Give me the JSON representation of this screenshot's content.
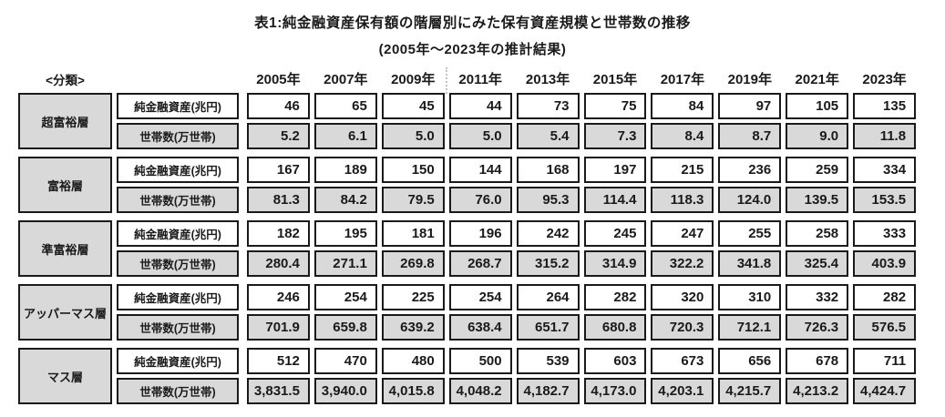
{
  "chart_data": {
    "type": "table",
    "title": "表1:純金融資産保有額の階層別にみた保有資産規模と世帯数の推移",
    "subtitle": "(2005年〜2023年の推計結果)",
    "classification_header": "<分類>",
    "columns": [
      "2005年",
      "2007年",
      "2009年",
      "2011年",
      "2013年",
      "2015年",
      "2017年",
      "2019年",
      "2021年",
      "2023年"
    ],
    "row_labels": {
      "assets": "純金融資産(兆円)",
      "households": "世帯数(万世帯)"
    },
    "groups": [
      {
        "category": "超富裕層",
        "assets": [
          "46",
          "65",
          "45",
          "44",
          "73",
          "75",
          "84",
          "97",
          "105",
          "135"
        ],
        "households": [
          "5.2",
          "6.1",
          "5.0",
          "5.0",
          "5.4",
          "7.3",
          "8.4",
          "8.7",
          "9.0",
          "11.8"
        ]
      },
      {
        "category": "富裕層",
        "assets": [
          "167",
          "189",
          "150",
          "144",
          "168",
          "197",
          "215",
          "236",
          "259",
          "334"
        ],
        "households": [
          "81.3",
          "84.2",
          "79.5",
          "76.0",
          "95.3",
          "114.4",
          "118.3",
          "124.0",
          "139.5",
          "153.5"
        ]
      },
      {
        "category": "準富裕層",
        "assets": [
          "182",
          "195",
          "181",
          "196",
          "242",
          "245",
          "247",
          "255",
          "258",
          "333"
        ],
        "households": [
          "280.4",
          "271.1",
          "269.8",
          "268.7",
          "315.2",
          "314.9",
          "322.2",
          "341.8",
          "325.4",
          "403.9"
        ]
      },
      {
        "category": "アッパーマス層",
        "assets": [
          "246",
          "254",
          "225",
          "254",
          "264",
          "282",
          "320",
          "310",
          "332",
          "282"
        ],
        "households": [
          "701.9",
          "659.8",
          "639.2",
          "638.4",
          "651.7",
          "680.8",
          "720.3",
          "712.1",
          "726.3",
          "576.5"
        ]
      },
      {
        "category": "マス層",
        "assets": [
          "512",
          "470",
          "480",
          "500",
          "539",
          "603",
          "673",
          "656",
          "678",
          "711"
        ],
        "households": [
          "3,831.5",
          "3,940.0",
          "4,015.8",
          "4,048.2",
          "4,182.7",
          "4,173.0",
          "4,203.1",
          "4,215.7",
          "4,213.2",
          "4,424.7"
        ]
      }
    ],
    "layout_hints": {
      "divider_before_year_index": 3,
      "legend": "none",
      "grid": "boxed-cells"
    }
  },
  "colors": {
    "cell_background_gray": "#d9d9d9",
    "cell_background_white": "#ffffff",
    "cell_border": "#1a1a1a",
    "header_divider_dotted": "#bcc6d2",
    "text": "#1a1a1a"
  }
}
